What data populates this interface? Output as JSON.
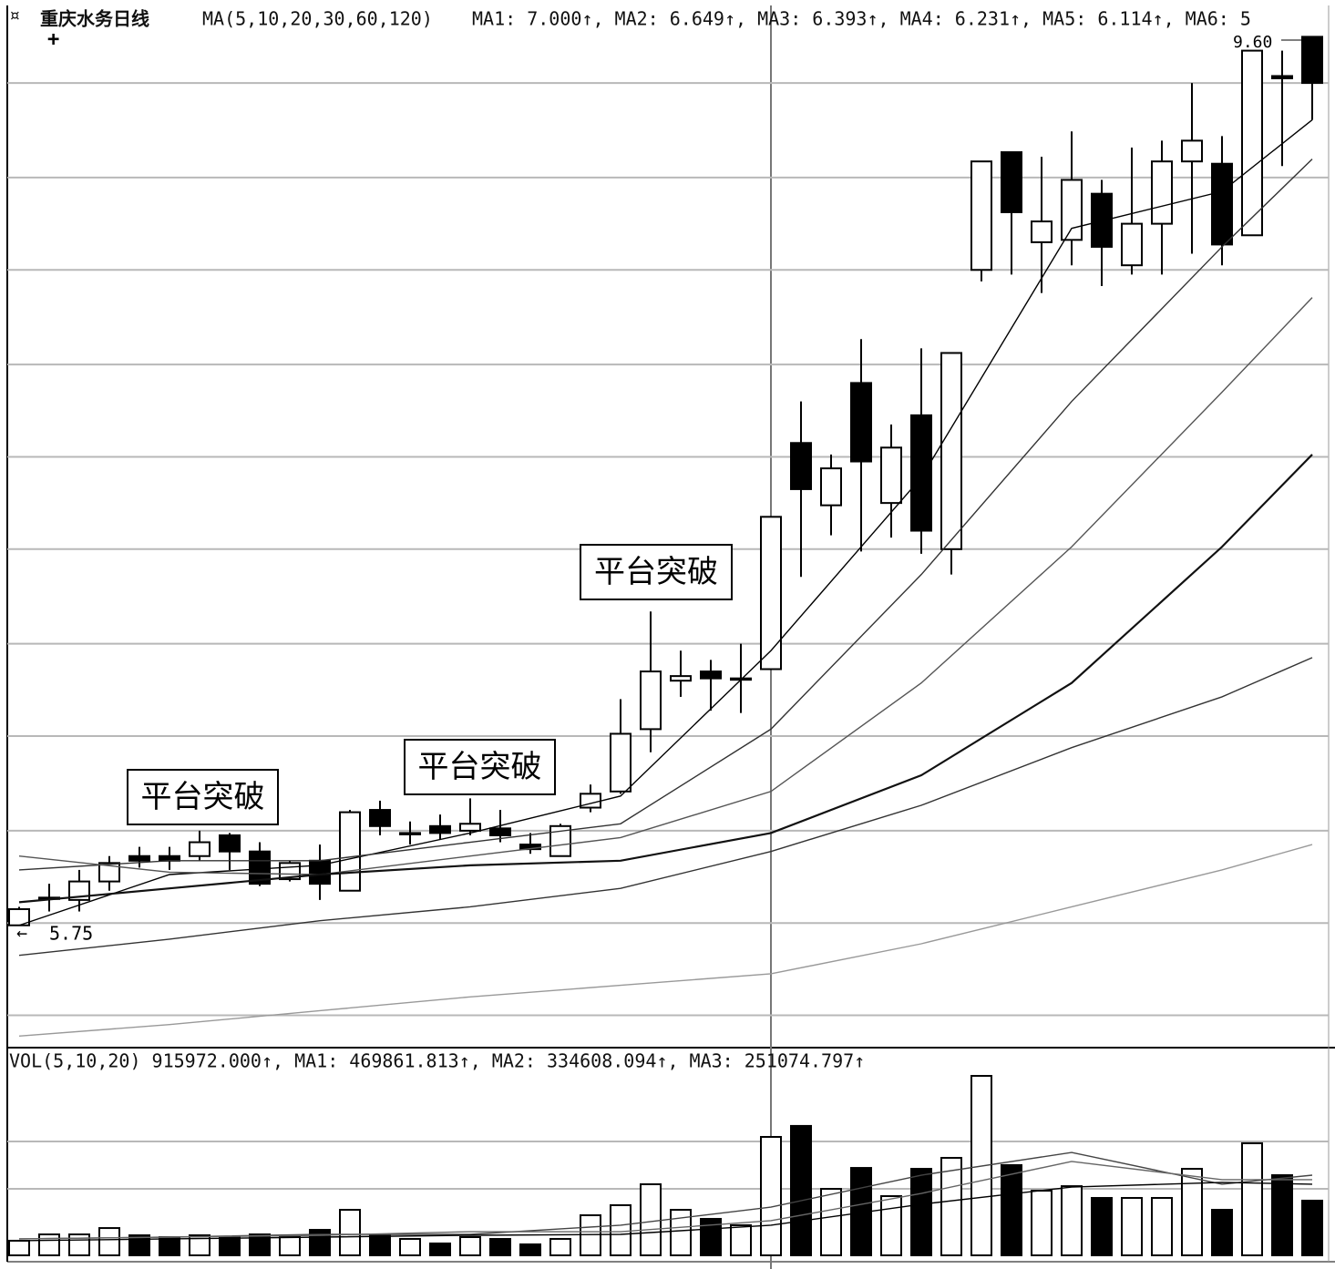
{
  "chart_data": {
    "type": "candlestick",
    "title": "重庆水务日线",
    "subtitle": "MA(5,10,20,30,60,120)",
    "header": "MA1: 7.000↑, MA2: 6.649↑, MA3: 6.393↑, MA4: 6.231↑, MA5: 6.114↑, MA6: 5",
    "open": [
      5.75,
      5.87,
      5.86,
      5.94,
      6.05,
      6.05,
      6.05,
      6.14,
      6.07,
      5.95,
      6.03,
      5.9,
      6.25,
      6.15,
      6.18,
      6.16,
      6.17,
      6.1,
      6.05,
      6.26,
      6.33,
      6.6,
      6.81,
      6.85,
      6.82,
      6.86,
      7.84,
      7.57,
      8.1,
      7.58,
      7.96,
      7.38,
      8.59,
      9.1,
      8.71,
      8.72,
      8.92,
      8.61,
      8.79,
      9.06,
      9.05,
      8.74,
      9.43,
      9.6
    ],
    "high": [
      5.83,
      5.93,
      5.99,
      6.05,
      6.09,
      6.09,
      6.16,
      6.15,
      6.11,
      6.03,
      6.1,
      6.25,
      6.29,
      6.2,
      6.23,
      6.3,
      6.25,
      6.15,
      6.19,
      6.36,
      6.73,
      7.11,
      6.94,
      6.9,
      6.97,
      7.52,
      8.02,
      7.79,
      8.29,
      7.92,
      8.25,
      8.23,
      9.06,
      9.1,
      9.08,
      9.19,
      8.98,
      9.12,
      9.15,
      9.4,
      9.17,
      9.54,
      9.54,
      9.6
    ],
    "low": [
      5.75,
      5.81,
      5.81,
      5.9,
      6.0,
      5.99,
      6.03,
      5.99,
      5.92,
      5.94,
      5.86,
      5.9,
      6.14,
      6.1,
      6.12,
      6.14,
      6.11,
      6.06,
      6.05,
      6.24,
      6.32,
      6.5,
      6.74,
      6.68,
      6.67,
      6.86,
      7.26,
      7.44,
      7.37,
      7.43,
      7.36,
      7.27,
      8.54,
      8.57,
      8.49,
      8.61,
      8.52,
      8.57,
      8.57,
      8.66,
      8.61,
      8.74,
      9.04,
      9.24
    ],
    "close": [
      5.82,
      5.87,
      5.94,
      6.02,
      6.03,
      6.03,
      6.11,
      6.07,
      5.93,
      6.02,
      5.93,
      6.24,
      6.18,
      6.15,
      6.15,
      6.19,
      6.14,
      6.08,
      6.18,
      6.32,
      6.58,
      6.85,
      6.83,
      6.82,
      6.82,
      7.52,
      7.64,
      7.73,
      7.76,
      7.82,
      7.46,
      8.23,
      9.06,
      8.84,
      8.8,
      8.98,
      8.69,
      8.79,
      9.06,
      9.15,
      8.7,
      9.54,
      9.42,
      9.4
    ],
    "ylim": [
      5.22,
      9.72
    ],
    "yticks": [
      5.36,
      5.76,
      6.16,
      6.57,
      6.97,
      7.38,
      7.78,
      8.18,
      8.59,
      8.99,
      9.4
    ],
    "grid": true,
    "max_label": "9.60",
    "min_label": "5.75",
    "ma_series": [
      {
        "name": "MA1",
        "color": "#000000",
        "x": [
          0,
          5,
          10,
          15,
          20,
          25,
          30,
          35,
          40,
          43
        ],
        "values": [
          5.75,
          5.97,
          6.01,
          6.15,
          6.31,
          6.94,
          7.69,
          8.77,
          8.93,
          9.24
        ]
      },
      {
        "name": "MA2",
        "color": "#333333",
        "x": [
          0,
          5,
          10,
          15,
          20,
          25,
          30,
          35,
          40,
          43
        ],
        "values": [
          5.99,
          6.03,
          6.03,
          6.11,
          6.19,
          6.6,
          7.27,
          8.02,
          8.69,
          9.07
        ]
      },
      {
        "name": "MA3",
        "color": "#555555",
        "x": [
          0,
          5,
          10,
          15,
          20,
          25,
          30,
          35,
          40,
          43
        ],
        "values": [
          6.05,
          5.98,
          5.97,
          6.05,
          6.13,
          6.33,
          6.8,
          7.39,
          8.06,
          8.47
        ]
      },
      {
        "name": "MA4",
        "color": "#111111",
        "x": [
          0,
          5,
          10,
          15,
          20,
          25,
          30,
          35,
          40,
          43
        ],
        "values": [
          5.85,
          5.91,
          5.97,
          6.01,
          6.03,
          6.15,
          6.4,
          6.8,
          7.39,
          7.79
        ]
      },
      {
        "name": "MA5",
        "color": "#333333",
        "x": [
          0,
          5,
          10,
          15,
          20,
          25,
          30,
          35,
          40,
          43
        ],
        "values": [
          5.62,
          5.69,
          5.77,
          5.83,
          5.91,
          6.07,
          6.27,
          6.52,
          6.74,
          6.91
        ]
      },
      {
        "name": "MA6",
        "color": "#999999",
        "x": [
          0,
          5,
          10,
          15,
          20,
          25,
          30,
          35,
          40,
          43
        ],
        "values": [
          5.27,
          5.32,
          5.38,
          5.44,
          5.49,
          5.54,
          5.67,
          5.83,
          5.99,
          6.1
        ]
      }
    ],
    "annotations": [
      "平台突破",
      "平台突破",
      "平台突破"
    ],
    "volume": {
      "title": "VOL(5,10,20) 915972.000↑, MA1: 469861.813↑, MA2: 334608.094↑, MA3: 251074.797↑",
      "values": [
        113000,
        162000,
        162000,
        211000,
        155000,
        141000,
        155000,
        141000,
        162000,
        141000,
        197000,
        352000,
        162000,
        127000,
        92000,
        141000,
        127000,
        85000,
        127000,
        310000,
        388000,
        550000,
        352000,
        282000,
        233000,
        915972,
        1001000,
        514000,
        676000,
        458000,
        669000,
        754000,
        1388000,
        698000,
        500000,
        535000,
        444000,
        444000,
        444000,
        669000,
        352000,
        867000,
        620000,
        423000
      ],
      "ylim": [
        0,
        1536000
      ],
      "yticks": [
        514000,
        881000
      ],
      "ma_series": [
        {
          "name": "MA1",
          "color": "#444444",
          "x": [
            0,
            5,
            10,
            15,
            20,
            25,
            30,
            35,
            40,
            43
          ],
          "values": [
            127000,
            141000,
            162000,
            162000,
            233000,
            373000,
            620000,
            796000,
            550000,
            620000
          ]
        },
        {
          "name": "MA2",
          "color": "#666666",
          "x": [
            0,
            5,
            10,
            15,
            20,
            25,
            30,
            35,
            40,
            43
          ],
          "values": [
            127000,
            141000,
            155000,
            183000,
            183000,
            268000,
            479000,
            726000,
            585000,
            585000
          ]
        },
        {
          "name": "MA3",
          "color": "#000000",
          "x": [
            0,
            5,
            10,
            15,
            20,
            25,
            30,
            35,
            40,
            43
          ],
          "values": [
            113000,
            127000,
            141000,
            155000,
            162000,
            233000,
            395000,
            528000,
            564000,
            550000
          ]
        }
      ]
    }
  }
}
